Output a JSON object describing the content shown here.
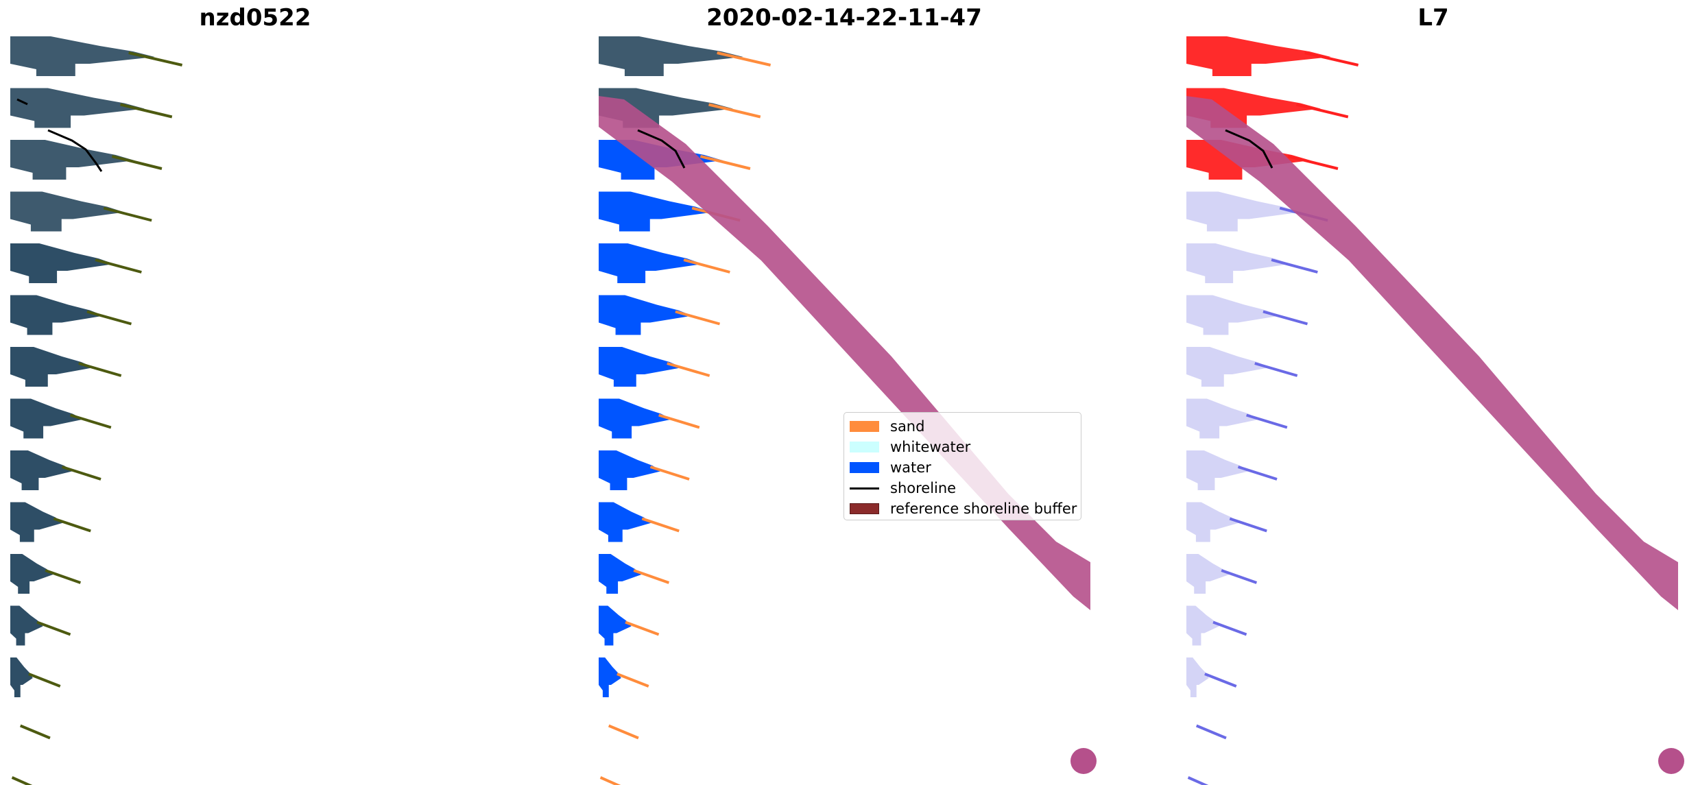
{
  "panels": [
    {
      "title": "nzd0522"
    },
    {
      "title": "2020-02-14-22-11-47"
    },
    {
      "title": "L7"
    }
  ],
  "legend": {
    "items": [
      {
        "label": "sand",
        "kind": "patch",
        "color": "#ff8c3c"
      },
      {
        "label": "whitewater",
        "kind": "patch",
        "color": "#ccffff"
      },
      {
        "label": "water",
        "kind": "patch",
        "color": "#0055ff"
      },
      {
        "label": "shoreline",
        "kind": "line",
        "color": "#000000"
      },
      {
        "label": "reference shoreline buffer",
        "kind": "patch",
        "color": "#8b2b2b"
      }
    ]
  },
  "colors": {
    "rgb_water": "#2e4e66",
    "rgb_vegetation": "#4d5a10",
    "class_water": "#0055ff",
    "class_sand": "#ff8c3c",
    "buffer": "#b5508b",
    "mndwi_high": "#ff2020",
    "mndwi_low": "#6a6ae6"
  }
}
